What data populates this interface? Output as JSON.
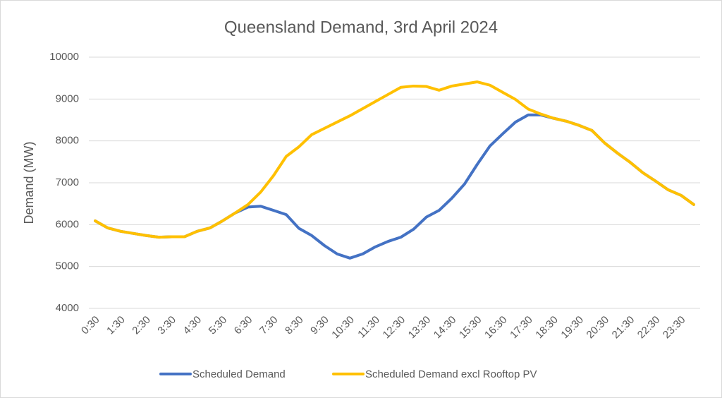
{
  "chart_data": {
    "type": "line",
    "title": "Queensland Demand, 3rd April 2024",
    "y_label": "Demand (MW)",
    "categories": [
      "0:30",
      null,
      "1:30",
      null,
      "2:30",
      null,
      "3:30",
      null,
      "4:30",
      null,
      "5:30",
      null,
      "6:30",
      null,
      "7:30",
      null,
      "8:30",
      null,
      "9:30",
      null,
      "10:30",
      null,
      "11:30",
      null,
      "12:30",
      null,
      "13:30",
      null,
      "14:30",
      null,
      "15:30",
      null,
      "16:30",
      null,
      "17:30",
      null,
      "18:30",
      null,
      "19:30",
      null,
      "20:30",
      null,
      "21:30",
      null,
      "22:30",
      null,
      "23:30",
      null
    ],
    "series": [
      {
        "name": "Scheduled Demand",
        "color": "#4472c4",
        "values": [
          6090,
          5920,
          5840,
          5790,
          5740,
          5700,
          5710,
          5710,
          5840,
          5920,
          6090,
          6280,
          6420,
          6440,
          6340,
          6240,
          5910,
          5740,
          5500,
          5300,
          5200,
          5300,
          5470,
          5600,
          5700,
          5890,
          6180,
          6340,
          6630,
          6970,
          7440,
          7880,
          8170,
          8450,
          8620,
          8620,
          8540,
          8470,
          8370,
          8250,
          7950,
          7710,
          7490,
          7240,
          7040,
          6830,
          6700,
          6480
        ]
      },
      {
        "name": "Scheduled Demand excl Rooftop PV",
        "color": "#ffc000",
        "values": [
          6090,
          5920,
          5840,
          5790,
          5740,
          5700,
          5710,
          5710,
          5840,
          5920,
          6090,
          6280,
          6480,
          6780,
          7170,
          7630,
          7860,
          8150,
          8300,
          8450,
          8600,
          8770,
          8940,
          9110,
          9280,
          9310,
          9300,
          9210,
          9310,
          9360,
          9410,
          9330,
          9160,
          8990,
          8760,
          8640,
          8540,
          8470,
          8370,
          8250,
          7950,
          7710,
          7490,
          7240,
          7040,
          6830,
          6700,
          6480
        ]
      }
    ],
    "ylim": [
      4000,
      10000
    ],
    "yticks": [
      4000,
      5000,
      6000,
      7000,
      8000,
      9000,
      10000
    ],
    "grid": true
  }
}
